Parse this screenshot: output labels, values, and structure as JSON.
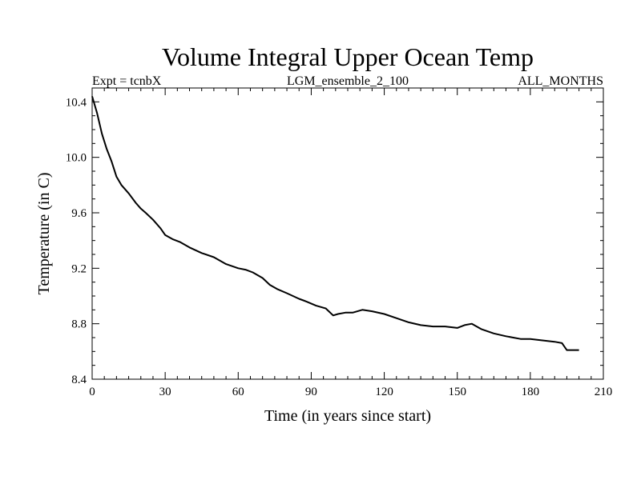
{
  "chart_data": {
    "type": "line",
    "title": "Volume Integral Upper Ocean Temp",
    "subtitle_left": "Expt = tcnbX",
    "subtitle_center": "LGM_ensemble_2_100",
    "subtitle_right": "ALL_MONTHS",
    "xlabel": "Time (in years since start)",
    "ylabel": "Temperature (in C)",
    "xlim": [
      0,
      210
    ],
    "ylim": [
      8.4,
      10.5
    ],
    "xticks": [
      0,
      30,
      60,
      90,
      120,
      150,
      180,
      210
    ],
    "xtick_labels": [
      "0",
      "30",
      "60",
      "90",
      "120",
      "150",
      "180",
      "210"
    ],
    "yticks": [
      8.4,
      8.8,
      9.2,
      9.6,
      10.0,
      10.4
    ],
    "ytick_labels": [
      "8.4",
      "8.8",
      "9.2",
      "9.6",
      "10.0",
      "10.4"
    ],
    "grid": false,
    "line_color": "#000000",
    "series": [
      {
        "name": "Upper Ocean Temp",
        "x": [
          0,
          2,
          4,
          6,
          8,
          10,
          12,
          15,
          18,
          20,
          22,
          25,
          28,
          30,
          33,
          36,
          40,
          45,
          50,
          55,
          60,
          63,
          66,
          70,
          73,
          76,
          80,
          85,
          88,
          92,
          96,
          99,
          101,
          104,
          107,
          111,
          115,
          120,
          125,
          130,
          135,
          140,
          145,
          150,
          153,
          156,
          160,
          165,
          170,
          173,
          176,
          180,
          185,
          190,
          193,
          195,
          200
        ],
        "y": [
          10.44,
          10.32,
          10.17,
          10.06,
          9.97,
          9.86,
          9.8,
          9.74,
          9.67,
          9.63,
          9.6,
          9.55,
          9.49,
          9.44,
          9.41,
          9.39,
          9.35,
          9.31,
          9.28,
          9.23,
          9.2,
          9.19,
          9.17,
          9.13,
          9.08,
          9.05,
          9.02,
          8.98,
          8.96,
          8.93,
          8.91,
          8.86,
          8.87,
          8.88,
          8.88,
          8.9,
          8.89,
          8.87,
          8.84,
          8.81,
          8.79,
          8.78,
          8.78,
          8.77,
          8.79,
          8.8,
          8.76,
          8.73,
          8.71,
          8.7,
          8.69,
          8.69,
          8.68,
          8.67,
          8.66,
          8.61,
          8.61
        ]
      }
    ]
  }
}
